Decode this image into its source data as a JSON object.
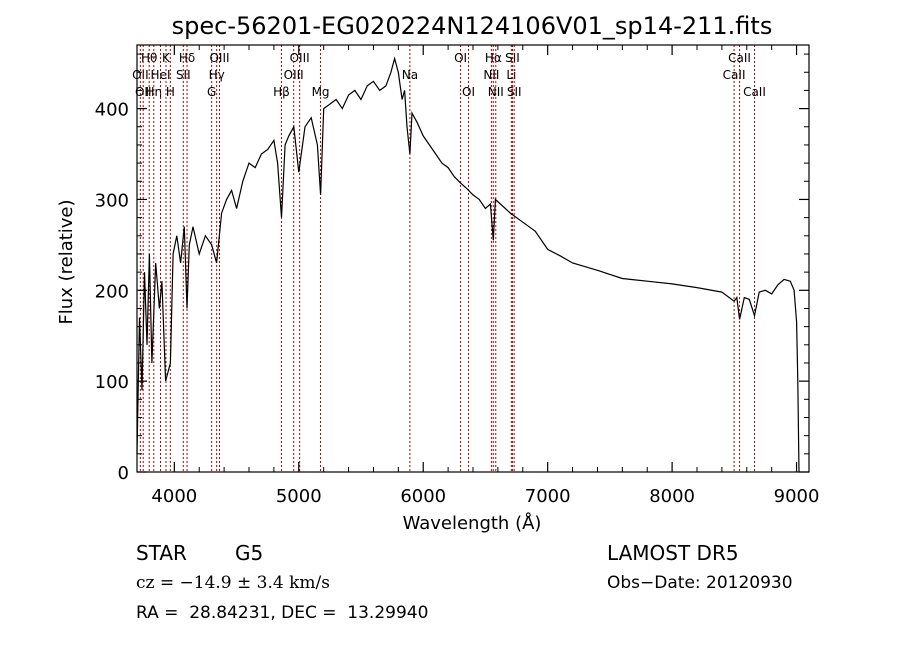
{
  "chart_data": {
    "type": "line",
    "title": "spec-56201-EG020224N124106V01_sp14-211.fits",
    "xlabel": "Wavelength (Å)",
    "ylabel": "Flux (relative)",
    "xlim": [
      3700,
      9100
    ],
    "ylim": [
      0,
      470
    ],
    "x_ticks": [
      4000,
      5000,
      6000,
      7000,
      8000,
      9000
    ],
    "y_ticks": [
      0,
      100,
      200,
      300,
      400
    ],
    "grid": false,
    "series": [
      {
        "color": "#000000",
        "x": [
          3700,
          3720,
          3740,
          3760,
          3780,
          3800,
          3820,
          3850,
          3880,
          3900,
          3930,
          3968,
          3990,
          4020,
          4050,
          4080,
          4102,
          4120,
          4150,
          4200,
          4250,
          4300,
          4340,
          4380,
          4420,
          4460,
          4500,
          4550,
          4600,
          4650,
          4700,
          4750,
          4800,
          4830,
          4861,
          4890,
          4920,
          4960,
          5000,
          5050,
          5100,
          5150,
          5175,
          5200,
          5250,
          5300,
          5350,
          5400,
          5450,
          5500,
          5550,
          5600,
          5650,
          5700,
          5740,
          5770,
          5800,
          5830,
          5850,
          5870,
          5893,
          5910,
          5950,
          6000,
          6050,
          6100,
          6150,
          6200,
          6250,
          6300,
          6350,
          6400,
          6450,
          6500,
          6540,
          6563,
          6580,
          6620,
          6700,
          6800,
          6900,
          7000,
          7100,
          7200,
          7400,
          7600,
          7800,
          8000,
          8200,
          8400,
          8498,
          8520,
          8542,
          8580,
          8620,
          8662,
          8700,
          8750,
          8800,
          8850,
          8900,
          8950,
          8980,
          9000,
          9010,
          9020
        ],
        "y": [
          20,
          170,
          90,
          220,
          140,
          240,
          120,
          230,
          180,
          210,
          100,
          120,
          240,
          260,
          230,
          270,
          180,
          250,
          270,
          240,
          260,
          250,
          230,
          285,
          300,
          310,
          290,
          320,
          340,
          335,
          350,
          355,
          365,
          340,
          280,
          360,
          370,
          380,
          330,
          380,
          390,
          360,
          305,
          400,
          405,
          410,
          400,
          415,
          420,
          410,
          425,
          430,
          420,
          425,
          440,
          455,
          440,
          410,
          420,
          380,
          350,
          395,
          385,
          370,
          360,
          350,
          340,
          335,
          325,
          318,
          312,
          305,
          300,
          290,
          295,
          255,
          300,
          295,
          285,
          275,
          265,
          245,
          238,
          230,
          222,
          213,
          210,
          207,
          203,
          198,
          188,
          192,
          168,
          192,
          190,
          172,
          198,
          200,
          196,
          206,
          212,
          210,
          200,
          165,
          100,
          0
        ]
      }
    ],
    "line_markers": [
      {
        "x": 3727,
        "label": "OII",
        "row": 2
      },
      {
        "x": 3750,
        "label": "OII",
        "row": 3
      },
      {
        "x": 3798,
        "label": "Hθ",
        "row": 1
      },
      {
        "x": 3835,
        "label": "Hη",
        "row": 3
      },
      {
        "x": 3889,
        "label": "HeI",
        "row": 2
      },
      {
        "x": 3933,
        "label": "K",
        "row": 1
      },
      {
        "x": 3968,
        "label": "H",
        "row": 3
      },
      {
        "x": 4072,
        "label": "SII",
        "row": 2
      },
      {
        "x": 4102,
        "label": "Hδ",
        "row": 1
      },
      {
        "x": 4300,
        "label": "G",
        "row": 3
      },
      {
        "x": 4340,
        "label": "Hγ",
        "row": 2
      },
      {
        "x": 4363,
        "label": "OIII",
        "row": 1
      },
      {
        "x": 4861,
        "label": "Hβ",
        "row": 3
      },
      {
        "x": 4959,
        "label": "OIII",
        "row": 2
      },
      {
        "x": 5007,
        "label": "OIII",
        "row": 1
      },
      {
        "x": 5175,
        "label": "Mg",
        "row": 3
      },
      {
        "x": 5893,
        "label": "Na",
        "row": 2
      },
      {
        "x": 6300,
        "label": "OI",
        "row": 1
      },
      {
        "x": 6364,
        "label": "OI",
        "row": 3
      },
      {
        "x": 6548,
        "label": "NII",
        "row": 2
      },
      {
        "x": 6563,
        "label": "Hα",
        "row": 1
      },
      {
        "x": 6583,
        "label": "NII",
        "row": 3
      },
      {
        "x": 6708,
        "label": "Li",
        "row": 2
      },
      {
        "x": 6717,
        "label": "SII",
        "row": 1
      },
      {
        "x": 6731,
        "label": "SII",
        "row": 3
      },
      {
        "x": 8498,
        "label": "CaII",
        "row": 2
      },
      {
        "x": 8542,
        "label": "CaII",
        "row": 1
      },
      {
        "x": 8662,
        "label": "CaII",
        "row": 3
      }
    ]
  },
  "info": {
    "class_label": "STAR",
    "subclass": "G5",
    "survey": "LAMOST DR5",
    "cz": "cz = −14.9 ± 3.4 km/s",
    "obs_date": "Obs−Date: 20120930",
    "coords": "RA =  28.84231, DEC =  13.29940"
  },
  "colors": {
    "spectrum": "#000000",
    "marker": "#b00000",
    "axes": "#000000",
    "background": "#ffffff"
  }
}
